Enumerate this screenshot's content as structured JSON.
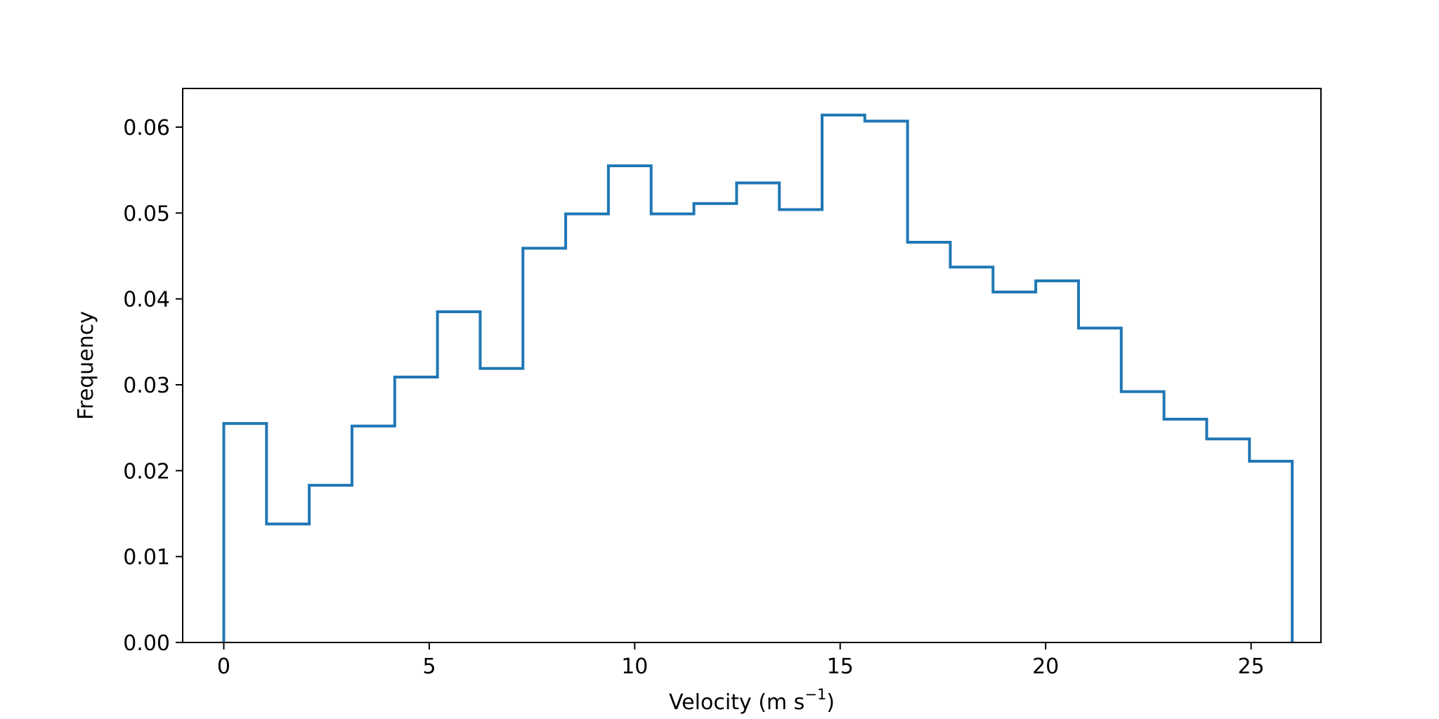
{
  "chart_data": {
    "type": "histogram",
    "style": "step",
    "xlabel_prefix": "Velocity (m s",
    "xlabel_sup": "−1",
    "xlabel_suffix": ")",
    "ylabel": "Frequency",
    "xlim": [
      -1.0,
      26.7
    ],
    "ylim": [
      0,
      0.0645
    ],
    "x_ticks": [
      0,
      5,
      10,
      15,
      20,
      25
    ],
    "y_ticks": [
      0,
      0.01,
      0.02,
      0.03,
      0.04,
      0.05,
      0.06
    ],
    "x_tick_labels": [
      "0",
      "5",
      "10",
      "15",
      "20",
      "25"
    ],
    "y_tick_labels": [
      "0.00",
      "0.01",
      "0.02",
      "0.03",
      "0.04",
      "0.05",
      "0.06"
    ],
    "grid": false,
    "color": "#1f77b4",
    "bin_edges": [
      0.0,
      1.04,
      2.08,
      3.12,
      4.16,
      5.2,
      6.24,
      7.28,
      8.32,
      9.36,
      10.4,
      11.44,
      12.48,
      13.52,
      14.56,
      15.6,
      16.64,
      17.68,
      18.72,
      19.76,
      20.8,
      21.84,
      22.88,
      23.92,
      24.96,
      26.0
    ],
    "values": [
      0.0255,
      0.0138,
      0.0183,
      0.0252,
      0.0309,
      0.0385,
      0.0319,
      0.0459,
      0.0499,
      0.0555,
      0.0499,
      0.0511,
      0.0535,
      0.0504,
      0.0614,
      0.0607,
      0.0466,
      0.0437,
      0.0408,
      0.0421,
      0.0366,
      0.0292,
      0.026,
      0.0237,
      0.0211
    ]
  }
}
